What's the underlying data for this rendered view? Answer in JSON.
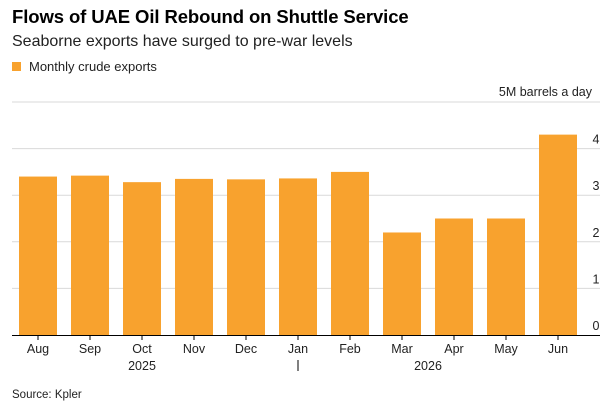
{
  "header": {
    "title": "Flows of UAE Oil Rebound on Shuttle Service",
    "subtitle": "Seaborne exports have surged to pre-war levels"
  },
  "legend": {
    "label": "Monthly crude exports"
  },
  "footer": {
    "source": "Source: Kpler"
  },
  "colors": {
    "bar": "#F8A22E",
    "grid": "#D9D9D9",
    "axis": "#000000",
    "text": "#222222"
  },
  "chart_data": {
    "type": "bar",
    "title": "Flows of UAE Oil Rebound on Shuttle Service",
    "subtitle": "Seaborne exports have surged to pre-war levels",
    "unit_label": "5M barrels a day",
    "categories": [
      "Aug",
      "Sep",
      "Oct",
      "Nov",
      "Dec",
      "Jan",
      "Feb",
      "Mar",
      "Apr",
      "May",
      "Jun"
    ],
    "year_labels": [
      "2025",
      "2026"
    ],
    "series": [
      {
        "name": "Monthly crude exports",
        "values": [
          3.4,
          3.42,
          3.28,
          3.35,
          3.34,
          3.36,
          3.5,
          2.2,
          2.5,
          2.5,
          4.3
        ]
      }
    ],
    "ylim": [
      0,
      5
    ],
    "yticks": [
      "0",
      "1",
      "2",
      "3",
      "4"
    ],
    "y_axis_side": "right",
    "grid": true,
    "legend_position": "top-left"
  }
}
